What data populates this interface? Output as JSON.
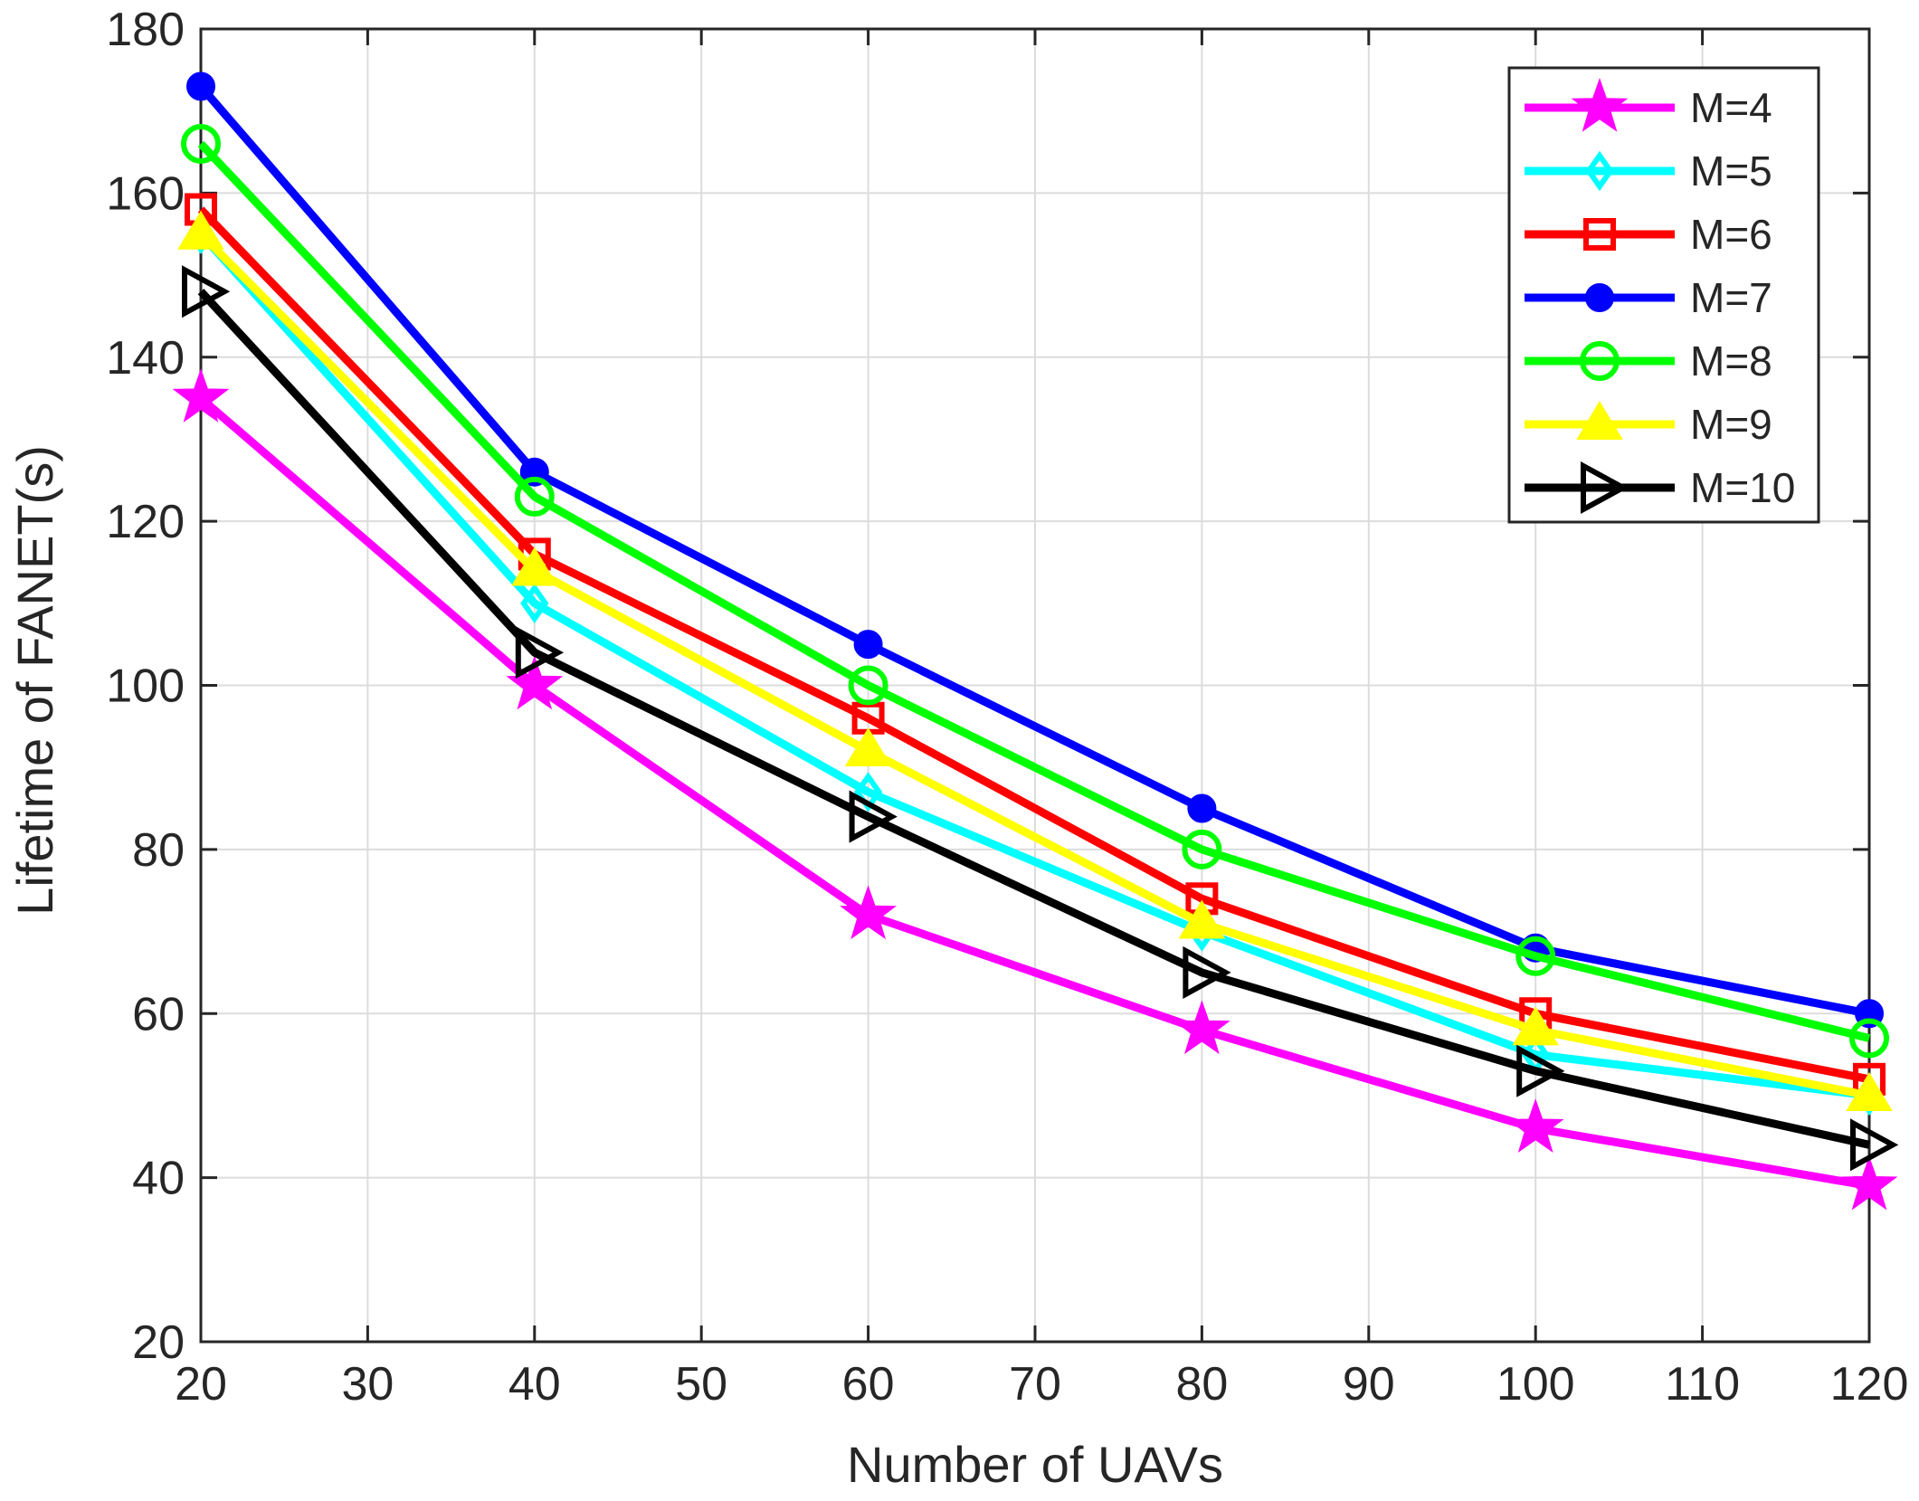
{
  "chart_data": {
    "type": "line",
    "title": "",
    "xlabel": "Number of UAVs",
    "ylabel": "Lifetime of FANET(s)",
    "xlim": [
      20,
      120
    ],
    "ylim": [
      20,
      180
    ],
    "grid": true,
    "legend_position": "top-right",
    "xticks": [
      20,
      30,
      40,
      50,
      60,
      70,
      80,
      90,
      100,
      110,
      120
    ],
    "yticks": [
      20,
      40,
      60,
      80,
      100,
      120,
      140,
      160,
      180
    ],
    "x": [
      20,
      40,
      60,
      80,
      100,
      120
    ],
    "series": [
      {
        "name": "M=4",
        "color": "#ff00ff",
        "marker": "star",
        "values": [
          135,
          100,
          72,
          58,
          46,
          39
        ]
      },
      {
        "name": "M=5",
        "color": "#00ffff",
        "marker": "diamond",
        "values": [
          155,
          110,
          87,
          70,
          55,
          50
        ]
      },
      {
        "name": "M=6",
        "color": "#ff0000",
        "marker": "square",
        "values": [
          158,
          116,
          96,
          74,
          60,
          52
        ]
      },
      {
        "name": "M=7",
        "color": "#0000ff",
        "marker": "filled-circle",
        "values": [
          173,
          126,
          105,
          85,
          68,
          60
        ]
      },
      {
        "name": "M=8",
        "color": "#00ff00",
        "marker": "circle",
        "values": [
          166,
          123,
          100,
          80,
          67,
          57
        ]
      },
      {
        "name": "M=9",
        "color": "#ffff00",
        "marker": "triangle-up",
        "values": [
          155,
          114,
          92,
          71,
          58,
          50
        ]
      },
      {
        "name": "M=10",
        "color": "#000000",
        "marker": "triangle-right",
        "values": [
          148,
          104,
          84,
          65,
          53,
          44
        ]
      }
    ]
  }
}
